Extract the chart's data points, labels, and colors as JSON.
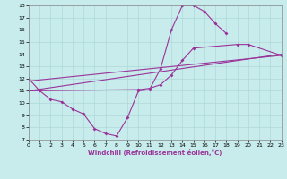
{
  "xlabel": "Windchill (Refroidissement éolien,°C)",
  "xlim": [
    0,
    23
  ],
  "ylim": [
    7,
    18
  ],
  "xticks": [
    0,
    1,
    2,
    3,
    4,
    5,
    6,
    7,
    8,
    9,
    10,
    11,
    12,
    13,
    14,
    15,
    16,
    17,
    18,
    19,
    20,
    21,
    22,
    23
  ],
  "yticks": [
    7,
    8,
    9,
    10,
    11,
    12,
    13,
    14,
    15,
    16,
    17,
    18
  ],
  "bg_color": "#c8ecec",
  "line_color": "#993399",
  "grid_color": "#b0d8d8",
  "line1_x": [
    0,
    1,
    2,
    3,
    4,
    5,
    6,
    7,
    8,
    9,
    10,
    11,
    12,
    13,
    14,
    15,
    16,
    17,
    18
  ],
  "line1_y": [
    12.0,
    11.0,
    10.3,
    10.1,
    9.5,
    9.1,
    7.9,
    7.5,
    7.3,
    8.8,
    11.0,
    11.1,
    12.8,
    16.0,
    18.0,
    18.0,
    17.5,
    16.5,
    15.7
  ],
  "line2_x": [
    0,
    10,
    11,
    12,
    13,
    14,
    15,
    19,
    20,
    23
  ],
  "line2_y": [
    11.0,
    11.1,
    11.2,
    11.5,
    12.3,
    13.5,
    14.5,
    14.8,
    14.8,
    13.9
  ],
  "line3_x": [
    0,
    23
  ],
  "line3_y": [
    11.8,
    13.9
  ],
  "line4_x": [
    0,
    23
  ],
  "line4_y": [
    11.0,
    14.0
  ]
}
